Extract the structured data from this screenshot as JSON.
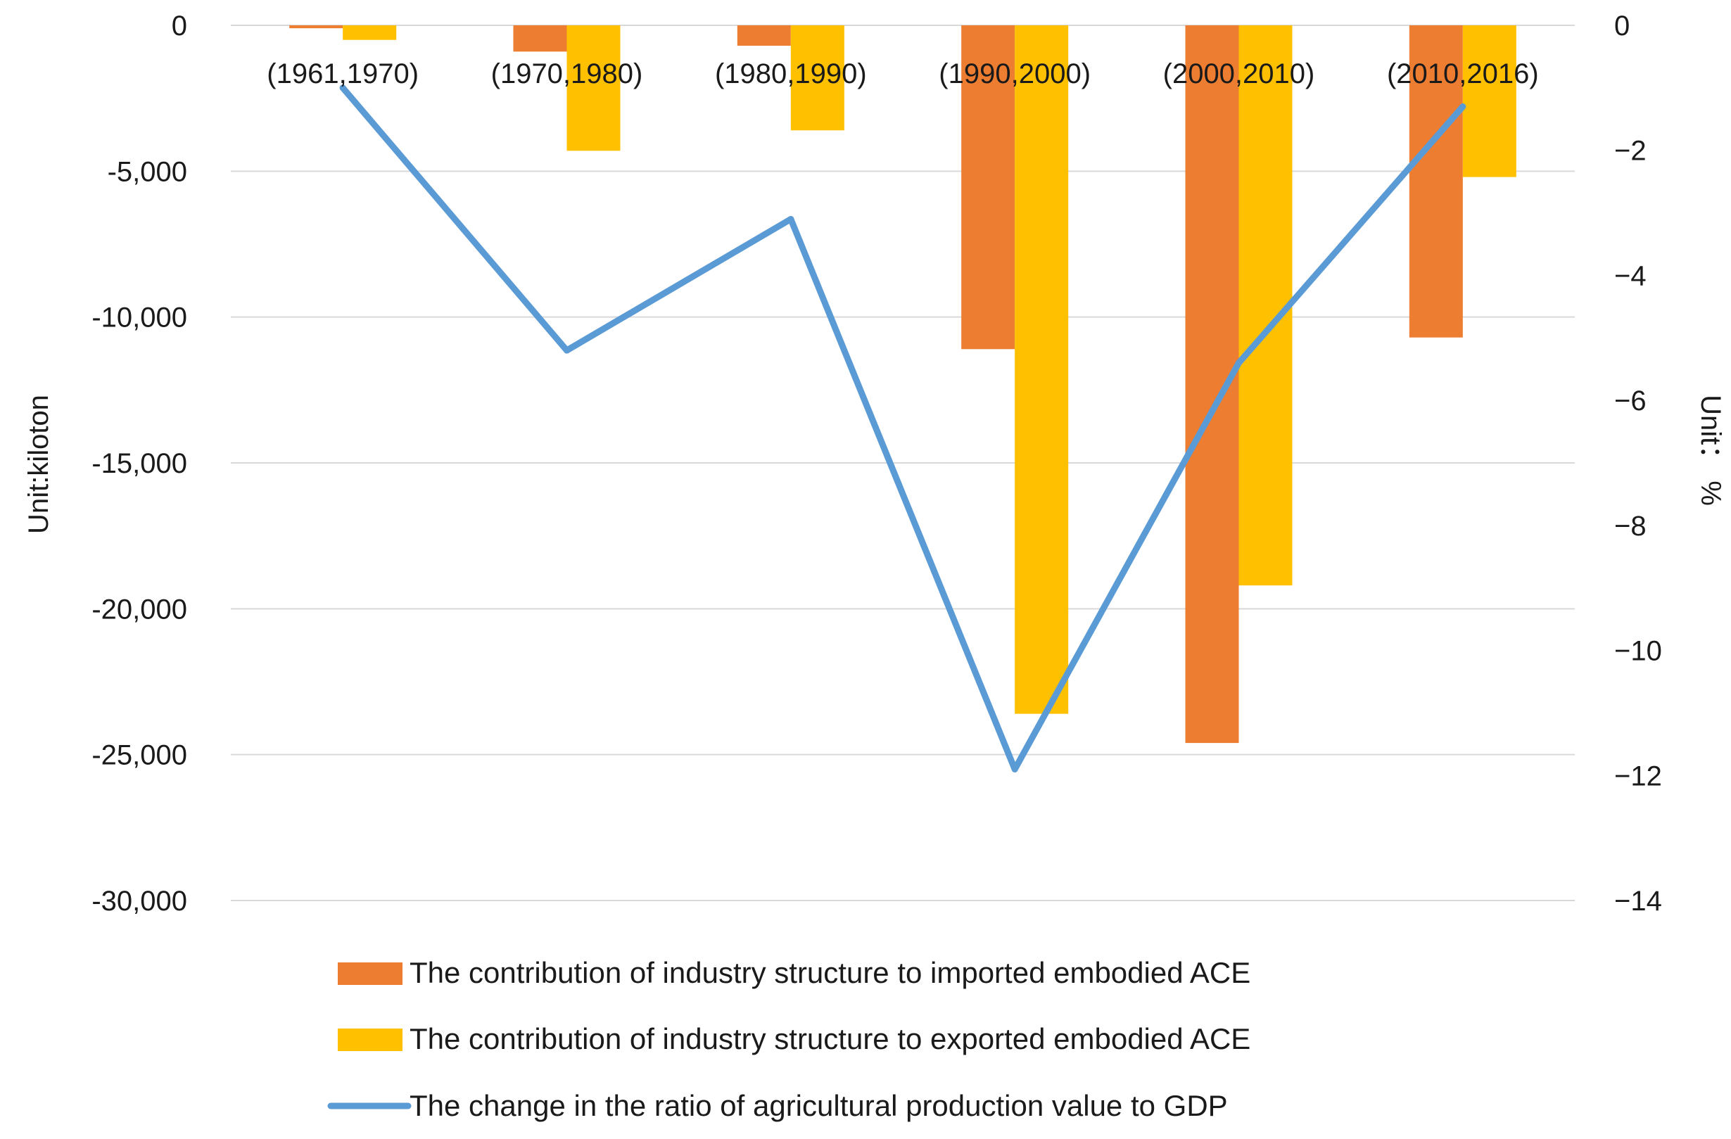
{
  "chart_data": {
    "type": "bar",
    "categories": [
      "(1961,1970)",
      "(1970,1980)",
      "(1980,1990)",
      "(1990,2000)",
      "(2000,2010)",
      "(2010,2016)"
    ],
    "series": [
      {
        "name": "The contribution of industry structure to imported embodied ACE",
        "type": "bar",
        "axis": "left",
        "color": "#ED7D31",
        "values": [
          -100,
          -900,
          -700,
          -11100,
          -24600,
          -10700
        ]
      },
      {
        "name": "The contribution of industry structure to exported embodied ACE",
        "type": "bar",
        "axis": "left",
        "color": "#FFC000",
        "values": [
          -500,
          -4300,
          -3600,
          -23600,
          -19200,
          -5200
        ]
      },
      {
        "name": "The change in the ratio of agricultural production value to GDP",
        "type": "line",
        "axis": "right",
        "color": "#5B9BD5",
        "values": [
          -1.0,
          -5.2,
          -3.1,
          -11.9,
          -5.4,
          -1.3
        ]
      }
    ],
    "ylabel": "Unit:kiloton",
    "ylim": [
      -30000,
      0
    ],
    "yticks": [
      0,
      -5000,
      -10000,
      -15000,
      -20000,
      -25000,
      -30000
    ],
    "ytick_labels": [
      "0",
      "-5,000",
      "-10,000",
      "-15,000",
      "-20,000",
      "-25,000",
      "-30,000"
    ],
    "y2label": "Unit： %",
    "y2lim": [
      -14,
      0
    ],
    "y2ticks": [
      0,
      -2,
      -4,
      -6,
      -8,
      -10,
      -12,
      -14
    ],
    "y2tick_labels": [
      "0",
      "−2",
      "−4",
      "−6",
      "−8",
      "−10",
      "−12",
      "−14"
    ],
    "grid": true,
    "legend": "bottom"
  }
}
